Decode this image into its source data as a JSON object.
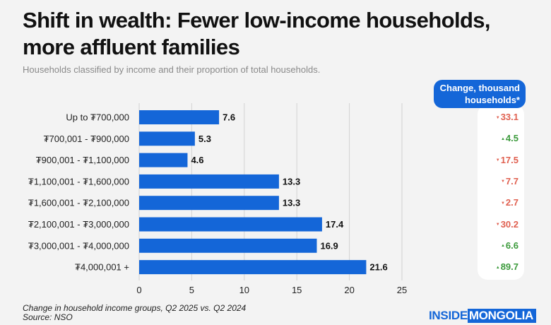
{
  "title": "Shift in wealth: Fewer low-income households, more affluent families",
  "subtitle": "Households classified by income and their proportion of total households.",
  "change_header": "Change, thousand households*",
  "footnote_line1": "Change in household income groups, Q2 2025 vs. Q2 2024",
  "footnote_line2": "Source: NSO",
  "logo": {
    "part1": "INSIDE",
    "part2": "MONGOLIA"
  },
  "colors": {
    "bar": "#1466d8",
    "positive": "#3b9a3b",
    "negative": "#e06050",
    "grid": "#d2d2d2"
  },
  "changes": [
    {
      "text": "33.1",
      "direction": "down"
    },
    {
      "text": "4.5",
      "direction": "up"
    },
    {
      "text": "17.5",
      "direction": "down"
    },
    {
      "text": "7.7",
      "direction": "down"
    },
    {
      "text": "2.7",
      "direction": "down"
    },
    {
      "text": "30.2",
      "direction": "down"
    },
    {
      "text": "6.6",
      "direction": "up"
    },
    {
      "text": "89.7",
      "direction": "up"
    }
  ],
  "chart_data": {
    "type": "bar",
    "orientation": "horizontal",
    "title": "Shift in wealth: Fewer low-income households, more affluent families",
    "categories": [
      "Up to ₮700,000",
      "₮700,001 - ₮900,000",
      "₮900,001 - ₮1,100,000",
      "₮1,100,001 - ₮1,600,000",
      "₮1,600,001 - ₮2,100,000",
      "₮2,100,001 - ₮3,000,000",
      "₮3,000,001 - ₮4,000,000",
      "₮4,000,001 +"
    ],
    "values": [
      7.6,
      5.3,
      4.6,
      13.3,
      13.3,
      17.4,
      16.9,
      21.6
    ],
    "value_labels": [
      "7.6",
      "5.3",
      "4.6",
      "13.3",
      "13.3",
      "17.4",
      "16.9",
      "21.6"
    ],
    "xlim": [
      0,
      25
    ],
    "xticks": [
      0,
      5,
      10,
      15,
      20,
      25
    ],
    "xtick_labels": [
      "0",
      "5",
      "10",
      "15",
      "20",
      "25"
    ],
    "xlabel": "",
    "ylabel": "",
    "grid": true
  }
}
